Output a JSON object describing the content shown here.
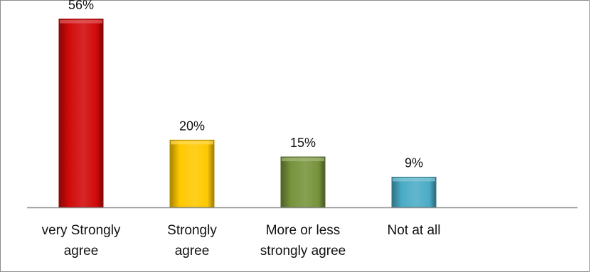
{
  "chart_data": {
    "type": "bar",
    "title": "",
    "xlabel": "",
    "ylabel": "",
    "unit": "%",
    "ylim": [
      0,
      60
    ],
    "grid": false,
    "legend": "none",
    "categories": [
      [
        "very Strongly",
        "agree"
      ],
      [
        "Strongly",
        "agree"
      ],
      [
        "More or less",
        "strongly agree"
      ],
      [
        "Not at all"
      ]
    ],
    "values": [
      56,
      20,
      15,
      9
    ],
    "data_labels": [
      "56%",
      "20%",
      "15%",
      "9%"
    ],
    "colors": [
      "#d10a0a",
      "#ffc900",
      "#77933c",
      "#4bacc6"
    ]
  }
}
